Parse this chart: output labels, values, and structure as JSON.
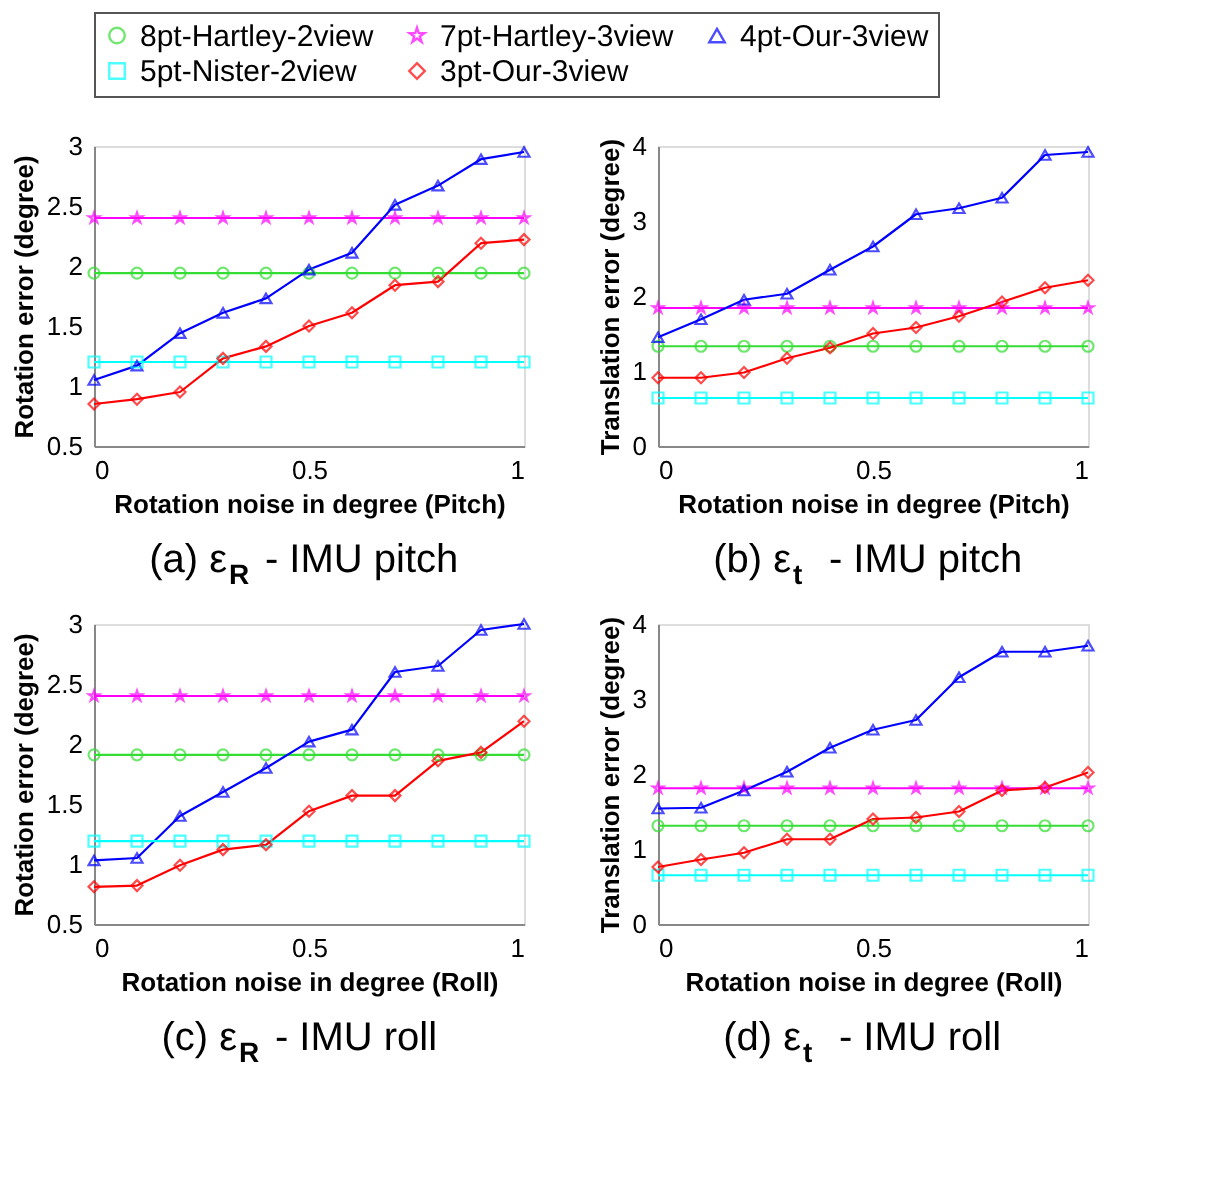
{
  "chart_data": [
    {
      "type": "line",
      "title": "(a) ε$_{R}$ - IMU pitch",
      "xlabel": "Rotation noise in degree (Pitch)",
      "ylabel": "Rotation error (degree)",
      "x": [
        0,
        0.1,
        0.2,
        0.3,
        0.4,
        0.5,
        0.6,
        0.7,
        0.8,
        0.9,
        1
      ],
      "xlim": [
        0,
        1
      ],
      "xticks": [
        0,
        0.5,
        1
      ],
      "ylim": [
        0.5,
        3
      ],
      "yticks": [
        0.5,
        1,
        1.5,
        2,
        2.5,
        3
      ],
      "grid": false,
      "legend": "top",
      "series": [
        {
          "name": "8pt-Hartley-2view",
          "color": "#33dd33",
          "marker": "circle",
          "values": [
            1.94,
            1.94,
            1.94,
            1.94,
            1.94,
            1.94,
            1.94,
            1.94,
            1.94,
            1.94,
            1.94
          ]
        },
        {
          "name": "7pt-Hartley-3view",
          "color": "#ff00ff",
          "marker": "star",
          "values": [
            2.4,
            2.4,
            2.4,
            2.4,
            2.4,
            2.4,
            2.4,
            2.4,
            2.4,
            2.4,
            2.4
          ]
        },
        {
          "name": "4pt-Our-3view",
          "color": "#0000ff",
          "marker": "triangle",
          "values": [
            1.05,
            1.17,
            1.44,
            1.61,
            1.73,
            1.97,
            2.11,
            2.51,
            2.67,
            2.89,
            2.95
          ]
        },
        {
          "name": "5pt-Nister-2view",
          "color": "#00ffff",
          "marker": "square",
          "values": [
            1.2,
            1.2,
            1.2,
            1.2,
            1.2,
            1.2,
            1.2,
            1.2,
            1.2,
            1.2,
            1.2
          ]
        },
        {
          "name": "3pt-Our-3view",
          "color": "#ff0000",
          "marker": "diamond",
          "values": [
            0.85,
            0.89,
            0.95,
            1.23,
            1.33,
            1.5,
            1.61,
            1.84,
            1.87,
            2.19,
            2.22
          ]
        }
      ]
    },
    {
      "type": "line",
      "title": "(b) ε$_{t}$ - IMU pitch",
      "xlabel": "Rotation noise in degree (Pitch)",
      "ylabel": "Translation error (degree)",
      "x": [
        0,
        0.1,
        0.2,
        0.3,
        0.4,
        0.5,
        0.6,
        0.7,
        0.8,
        0.9,
        1
      ],
      "xlim": [
        0,
        1
      ],
      "xticks": [
        0,
        0.5,
        1
      ],
      "ylim": [
        0,
        4
      ],
      "yticks": [
        0,
        1,
        2,
        3,
        4
      ],
      "grid": false,
      "series": [
        {
          "name": "8pt-Hartley-2view",
          "color": "#33dd33",
          "marker": "circle",
          "values": [
            1.33,
            1.33,
            1.33,
            1.33,
            1.33,
            1.33,
            1.33,
            1.33,
            1.33,
            1.33,
            1.33
          ]
        },
        {
          "name": "7pt-Hartley-3view",
          "color": "#ff00ff",
          "marker": "star",
          "values": [
            1.84,
            1.84,
            1.84,
            1.84,
            1.84,
            1.84,
            1.84,
            1.84,
            1.84,
            1.84,
            1.84
          ]
        },
        {
          "name": "4pt-Our-3view",
          "color": "#0000ff",
          "marker": "triangle",
          "values": [
            1.45,
            1.69,
            1.95,
            2.03,
            2.35,
            2.66,
            3.09,
            3.17,
            3.31,
            3.88,
            3.92
          ]
        },
        {
          "name": "5pt-Nister-2view",
          "color": "#00ffff",
          "marker": "square",
          "values": [
            0.64,
            0.64,
            0.64,
            0.64,
            0.64,
            0.64,
            0.64,
            0.64,
            0.64,
            0.64,
            0.64
          ]
        },
        {
          "name": "3pt-Our-3view",
          "color": "#ff0000",
          "marker": "diamond",
          "values": [
            0.91,
            0.91,
            0.98,
            1.17,
            1.31,
            1.5,
            1.58,
            1.73,
            1.92,
            2.11,
            2.21
          ]
        }
      ]
    },
    {
      "type": "line",
      "title": "(c) ε$_{R}$ - IMU roll",
      "xlabel": "Rotation noise in degree (Roll)",
      "ylabel": "Rotation error (degree)",
      "x": [
        0,
        0.1,
        0.2,
        0.3,
        0.4,
        0.5,
        0.6,
        0.7,
        0.8,
        0.9,
        1
      ],
      "xlim": [
        0,
        1
      ],
      "xticks": [
        0,
        0.5,
        1
      ],
      "ylim": [
        0.5,
        3
      ],
      "yticks": [
        0.5,
        1,
        1.5,
        2,
        2.5,
        3
      ],
      "grid": false,
      "series": [
        {
          "name": "8pt-Hartley-2view",
          "color": "#33dd33",
          "marker": "circle",
          "values": [
            1.91,
            1.91,
            1.91,
            1.91,
            1.91,
            1.91,
            1.91,
            1.91,
            1.91,
            1.91,
            1.91
          ]
        },
        {
          "name": "7pt-Hartley-3view",
          "color": "#ff00ff",
          "marker": "star",
          "values": [
            2.4,
            2.4,
            2.4,
            2.4,
            2.4,
            2.4,
            2.4,
            2.4,
            2.4,
            2.4,
            2.4
          ]
        },
        {
          "name": "4pt-Our-3view",
          "color": "#0000ff",
          "marker": "triangle",
          "values": [
            1.03,
            1.05,
            1.4,
            1.6,
            1.8,
            2.02,
            2.12,
            2.6,
            2.65,
            2.95,
            3.0
          ]
        },
        {
          "name": "5pt-Nister-2view",
          "color": "#00ffff",
          "marker": "square",
          "values": [
            1.19,
            1.19,
            1.19,
            1.19,
            1.19,
            1.19,
            1.19,
            1.19,
            1.19,
            1.19,
            1.19
          ]
        },
        {
          "name": "3pt-Our-3view",
          "color": "#ff0000",
          "marker": "diamond",
          "values": [
            0.81,
            0.82,
            0.99,
            1.12,
            1.16,
            1.44,
            1.57,
            1.57,
            1.86,
            1.93,
            2.19
          ]
        }
      ]
    },
    {
      "type": "line",
      "title": "(d) ε$_{t}$ - IMU roll",
      "xlabel": "Rotation noise in degree (Roll)",
      "ylabel": "Translation error (degree)",
      "x": [
        0,
        0.1,
        0.2,
        0.3,
        0.4,
        0.5,
        0.6,
        0.7,
        0.8,
        0.9,
        1
      ],
      "xlim": [
        0,
        1
      ],
      "xticks": [
        0,
        0.5,
        1
      ],
      "ylim": [
        0,
        4
      ],
      "yticks": [
        0,
        1,
        2,
        3,
        4
      ],
      "grid": false,
      "series": [
        {
          "name": "8pt-Hartley-2view",
          "color": "#33dd33",
          "marker": "circle",
          "values": [
            1.31,
            1.31,
            1.31,
            1.31,
            1.31,
            1.31,
            1.31,
            1.31,
            1.31,
            1.31,
            1.31
          ]
        },
        {
          "name": "7pt-Hartley-3view",
          "color": "#ff00ff",
          "marker": "star",
          "values": [
            1.81,
            1.81,
            1.81,
            1.81,
            1.81,
            1.81,
            1.81,
            1.81,
            1.81,
            1.81,
            1.81
          ]
        },
        {
          "name": "4pt-Our-3view",
          "color": "#0000ff",
          "marker": "triangle",
          "values": [
            1.54,
            1.55,
            1.78,
            2.03,
            2.35,
            2.59,
            2.72,
            3.29,
            3.63,
            3.63,
            3.71
          ]
        },
        {
          "name": "5pt-Nister-2view",
          "color": "#00ffff",
          "marker": "square",
          "values": [
            0.65,
            0.65,
            0.65,
            0.65,
            0.65,
            0.65,
            0.65,
            0.65,
            0.65,
            0.65,
            0.65
          ]
        },
        {
          "name": "3pt-Our-3view",
          "color": "#ff0000",
          "marker": "diamond",
          "values": [
            0.76,
            0.86,
            0.95,
            1.13,
            1.13,
            1.4,
            1.42,
            1.5,
            1.78,
            1.82,
            2.02
          ]
        }
      ]
    }
  ]
}
